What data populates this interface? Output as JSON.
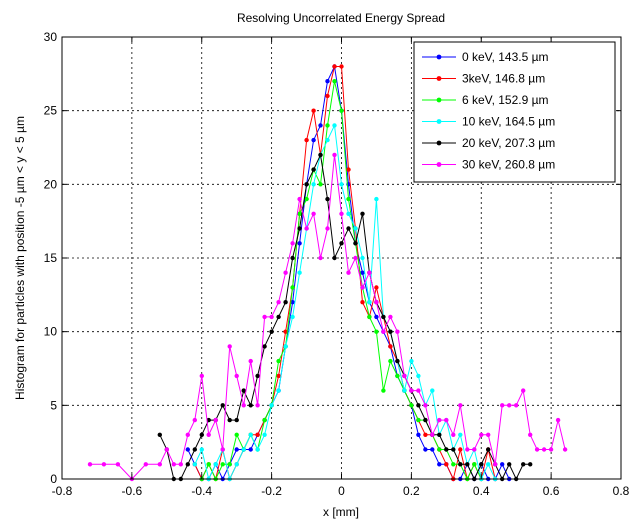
{
  "chart_data": {
    "type": "line",
    "title": "Resolving Uncorrelated Energy Spread",
    "xlabel": "x [mm]",
    "ylabel": "Histogram for particles with  position -5 µm < y < 5 µm",
    "xlim": [
      -0.8,
      0.8
    ],
    "ylim": [
      0,
      30
    ],
    "xticks": [
      -0.8,
      -0.6,
      -0.4,
      -0.2,
      0,
      0.2,
      0.4,
      0.6,
      0.8
    ],
    "xtick_labels": [
      "-0.8",
      "-0.6",
      "-0.4",
      "-0.2",
      "0",
      "0.2",
      "0.4",
      "0.6",
      "0.8"
    ],
    "yticks": [
      0,
      5,
      10,
      15,
      20,
      25,
      30
    ],
    "ytick_labels": [
      "0",
      "5",
      "10",
      "15",
      "20",
      "25",
      "30"
    ],
    "grid": true,
    "legend_position": "top-right",
    "series": [
      {
        "name": "0 keV, 143.5 µm",
        "color": "#0000ff",
        "x": [
          -0.44,
          -0.42,
          -0.4,
          -0.38,
          -0.36,
          -0.34,
          -0.32,
          -0.3,
          -0.28,
          -0.26,
          -0.24,
          -0.22,
          -0.2,
          -0.18,
          -0.16,
          -0.14,
          -0.12,
          -0.1,
          -0.08,
          -0.06,
          -0.04,
          -0.02,
          0.0,
          0.02,
          0.04,
          0.06,
          0.08,
          0.1,
          0.12,
          0.14,
          0.16,
          0.18,
          0.2,
          0.22,
          0.24,
          0.26,
          0.28,
          0.3,
          0.32,
          0.34,
          0.36,
          0.38,
          0.4,
          0.42,
          0.44,
          0.46,
          0.48
        ],
        "y": [
          2,
          1,
          0,
          0,
          1,
          0,
          1,
          2,
          2,
          2,
          3,
          4,
          5,
          6,
          9,
          12,
          16,
          20,
          23,
          24,
          27,
          28,
          25,
          20,
          16,
          14,
          12,
          11,
          10,
          9,
          7,
          6,
          5,
          3,
          2,
          2,
          1,
          1,
          0,
          0,
          1,
          0,
          1,
          0,
          0,
          1,
          0
        ]
      },
      {
        "name": " 3keV, 146.8 µm",
        "color": "#ff0000",
        "x": [
          -0.42,
          -0.4,
          -0.38,
          -0.36,
          -0.34,
          -0.32,
          -0.3,
          -0.28,
          -0.26,
          -0.24,
          -0.22,
          -0.2,
          -0.18,
          -0.16,
          -0.14,
          -0.12,
          -0.1,
          -0.08,
          -0.06,
          -0.04,
          -0.02,
          0.0,
          0.02,
          0.04,
          0.06,
          0.08,
          0.1,
          0.12,
          0.14,
          0.16,
          0.18,
          0.2,
          0.22,
          0.24,
          0.26,
          0.28,
          0.3,
          0.32,
          0.34,
          0.36,
          0.38,
          0.4,
          0.42,
          0.44
        ],
        "y": [
          1,
          0,
          1,
          0,
          2,
          0,
          1,
          2,
          3,
          3,
          4,
          5,
          7,
          10,
          13,
          18,
          23,
          25,
          22,
          26,
          28,
          28,
          21,
          17,
          12,
          11,
          13,
          11,
          9,
          8,
          6,
          5,
          4,
          3,
          3,
          2,
          1,
          0,
          2,
          0,
          1,
          0,
          2,
          0
        ]
      },
      {
        "name": "6 keV, 152.9 µm",
        "color": "#00ff00",
        "x": [
          -0.4,
          -0.38,
          -0.36,
          -0.34,
          -0.32,
          -0.3,
          -0.28,
          -0.26,
          -0.24,
          -0.22,
          -0.2,
          -0.18,
          -0.16,
          -0.14,
          -0.12,
          -0.1,
          -0.08,
          -0.06,
          -0.04,
          -0.02,
          0.0,
          0.02,
          0.04,
          0.06,
          0.08,
          0.1,
          0.12,
          0.14,
          0.16,
          0.18,
          0.2,
          0.22,
          0.24,
          0.26,
          0.28,
          0.3,
          0.32,
          0.34,
          0.36,
          0.38,
          0.4
        ],
        "y": [
          0,
          1,
          0,
          1,
          1,
          3,
          2,
          3,
          2,
          4,
          5,
          8,
          9,
          13,
          18,
          19,
          21,
          20,
          24,
          27,
          25,
          19,
          16,
          13,
          11,
          10,
          6,
          8,
          7,
          6,
          5,
          4,
          4,
          3,
          2,
          2,
          1,
          1,
          0,
          1,
          0
        ]
      },
      {
        "name": "10 keV, 164.5 µm",
        "color": "#00ffff",
        "x": [
          -0.42,
          -0.4,
          -0.38,
          -0.36,
          -0.34,
          -0.32,
          -0.3,
          -0.28,
          -0.26,
          -0.24,
          -0.22,
          -0.2,
          -0.18,
          -0.16,
          -0.14,
          -0.12,
          -0.1,
          -0.08,
          -0.06,
          -0.04,
          -0.02,
          0.0,
          0.02,
          0.04,
          0.06,
          0.08,
          0.1,
          0.12,
          0.14,
          0.16,
          0.18,
          0.2,
          0.22,
          0.24,
          0.26,
          0.28,
          0.3,
          0.32,
          0.34,
          0.36,
          0.38,
          0.4,
          0.42,
          0.44
        ],
        "y": [
          1,
          2,
          0,
          1,
          2,
          0,
          1,
          2,
          3,
          2,
          3,
          5,
          6,
          9,
          11,
          14,
          17,
          20,
          22,
          23,
          24,
          20,
          18,
          17,
          15,
          12,
          19,
          11,
          10,
          8,
          6,
          8,
          7,
          5,
          6,
          3,
          4,
          2,
          3,
          1,
          2,
          0,
          1,
          0
        ]
      },
      {
        "name": "20 keV, 207.3 µm",
        "color": "#000000",
        "x": [
          -0.52,
          -0.5,
          -0.48,
          -0.46,
          -0.44,
          -0.42,
          -0.4,
          -0.38,
          -0.36,
          -0.34,
          -0.32,
          -0.3,
          -0.28,
          -0.26,
          -0.24,
          -0.22,
          -0.2,
          -0.18,
          -0.16,
          -0.14,
          -0.12,
          -0.1,
          -0.08,
          -0.06,
          -0.04,
          -0.02,
          0.0,
          0.02,
          0.04,
          0.06,
          0.08,
          0.1,
          0.12,
          0.14,
          0.16,
          0.18,
          0.2,
          0.22,
          0.24,
          0.26,
          0.28,
          0.3,
          0.32,
          0.34,
          0.36,
          0.38,
          0.4,
          0.42,
          0.44,
          0.46,
          0.48,
          0.5,
          0.52,
          0.54
        ],
        "y": [
          3,
          2,
          0,
          0,
          1,
          2,
          3,
          4,
          4,
          5,
          4,
          4,
          6,
          5,
          7,
          9,
          10,
          11,
          12,
          15,
          17,
          20,
          21,
          22,
          19,
          15,
          16,
          17,
          16,
          18,
          14,
          12,
          11,
          10,
          8,
          7,
          6,
          5,
          4,
          3,
          3,
          2,
          2,
          1,
          1,
          0,
          1,
          2,
          1,
          0,
          1,
          0,
          1,
          1
        ]
      },
      {
        "name": "30 keV, 260.8 µm",
        "color": "#ff00ff",
        "x": [
          -0.72,
          -0.68,
          -0.64,
          -0.6,
          -0.56,
          -0.52,
          -0.5,
          -0.48,
          -0.46,
          -0.44,
          -0.42,
          -0.4,
          -0.38,
          -0.36,
          -0.34,
          -0.32,
          -0.3,
          -0.28,
          -0.26,
          -0.24,
          -0.22,
          -0.2,
          -0.18,
          -0.16,
          -0.14,
          -0.12,
          -0.1,
          -0.08,
          -0.06,
          -0.04,
          -0.02,
          0.0,
          0.02,
          0.04,
          0.06,
          0.08,
          0.1,
          0.12,
          0.14,
          0.16,
          0.18,
          0.2,
          0.22,
          0.24,
          0.26,
          0.28,
          0.3,
          0.32,
          0.34,
          0.36,
          0.38,
          0.4,
          0.42,
          0.44,
          0.46,
          0.48,
          0.5,
          0.52,
          0.54,
          0.56,
          0.58,
          0.6,
          0.62,
          0.64
        ],
        "y": [
          1,
          1,
          1,
          0,
          1,
          1,
          2,
          1,
          1,
          3,
          4,
          7,
          3,
          4,
          2,
          9,
          7,
          5,
          8,
          5,
          11,
          11,
          12,
          14,
          16,
          19,
          17,
          18,
          15,
          17,
          22,
          18,
          14,
          15,
          13,
          14,
          12,
          10,
          11,
          10,
          7,
          6,
          6,
          5,
          3,
          4,
          4,
          3,
          5,
          2,
          2,
          3,
          3,
          1,
          5,
          5,
          5,
          6,
          3,
          2,
          2,
          2,
          4,
          2
        ]
      }
    ]
  }
}
